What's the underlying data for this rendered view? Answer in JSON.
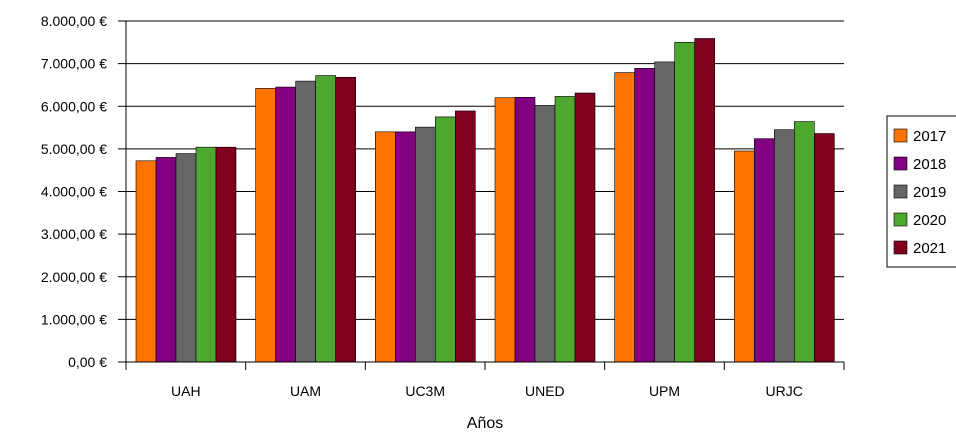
{
  "chart_data": {
    "type": "bar",
    "title": "",
    "xlabel": "Años",
    "ylabel": "",
    "categories": [
      "UAH",
      "UAM",
      "UC3M",
      "UNED",
      "UPM",
      "URJC"
    ],
    "ylim": [
      0,
      8000
    ],
    "yticks": [
      0,
      1000,
      2000,
      3000,
      4000,
      5000,
      6000,
      7000,
      8000
    ],
    "ytick_labels": [
      "0,00 €",
      "1.000,00 €",
      "2.000,00 €",
      "3.000,00 €",
      "4.000,00 €",
      "5.000,00 €",
      "6.000,00 €",
      "7.000,00 €",
      "8.000,00 €"
    ],
    "grid": true,
    "legend_position": "right",
    "series": [
      {
        "name": "2017",
        "color": "#ff7300",
        "values": [
          4720,
          6420,
          5400,
          6200,
          6790,
          4950
        ]
      },
      {
        "name": "2018",
        "color": "#800080",
        "values": [
          4800,
          6450,
          5400,
          6210,
          6890,
          5240
        ]
      },
      {
        "name": "2019",
        "color": "#666666",
        "values": [
          4890,
          6590,
          5510,
          6020,
          7040,
          5450
        ]
      },
      {
        "name": "2020",
        "color": "#4ea72e",
        "values": [
          5040,
          6720,
          5750,
          6230,
          7500,
          5640
        ]
      },
      {
        "name": "2021",
        "color": "#800020",
        "values": [
          5040,
          6680,
          5890,
          6310,
          7590,
          5360
        ]
      }
    ]
  }
}
